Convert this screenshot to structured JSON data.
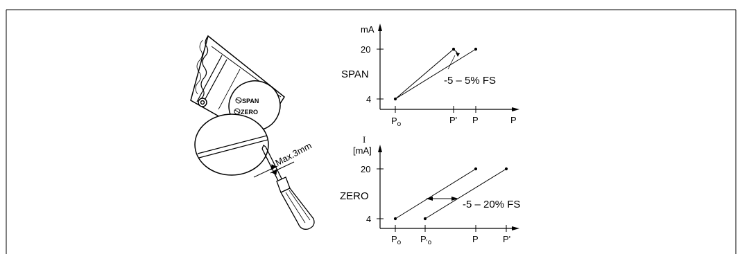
{
  "device": {
    "span_label": "SPAN",
    "zero_label": "ZERO",
    "tool_label": "Max.3mm"
  },
  "charts": [
    {
      "id": "span",
      "section_label": "SPAN",
      "ylabel": "mA",
      "annotation": "-5 – 5% FS",
      "y_ticks": [
        "20",
        "4"
      ],
      "x_ticks": [
        "P0",
        "P'",
        "P",
        "P"
      ]
    },
    {
      "id": "zero",
      "section_label": "ZERO",
      "ylabel_symbol": "I",
      "ylabel": "[mA]",
      "annotation": "-5 – 20% FS",
      "y_ticks": [
        "20",
        "4"
      ],
      "x_ticks": [
        "P0",
        "P'0",
        "P",
        "P'"
      ]
    }
  ]
}
